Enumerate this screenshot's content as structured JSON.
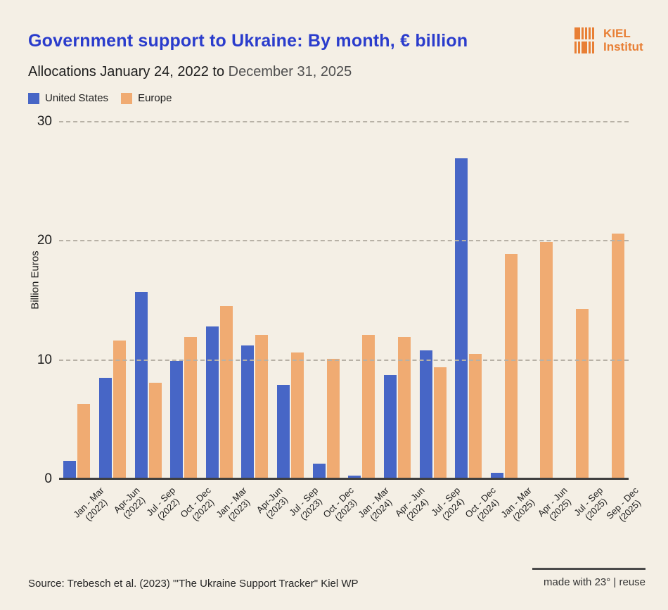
{
  "header": {
    "title": "Government support to Ukraine: By month, € billion",
    "subtitle_main": "Allocations January 24, 2022 to ",
    "subtitle_end": "December 31, 2025"
  },
  "logo": {
    "line1": "KIEL",
    "line2": "Institut",
    "color": "#e87f35"
  },
  "legend": {
    "items": [
      {
        "label": "United States",
        "color": "#4766c6"
      },
      {
        "label": "Europe",
        "color": "#f0ab72"
      }
    ]
  },
  "chart_data": {
    "type": "bar",
    "title": "Government support to Ukraine: By month, € billion",
    "subtitle": "Allocations January 24, 2022 to December 31, 2025",
    "ylabel": "Billion Euros",
    "xlabel": "",
    "ylim": [
      0,
      30
    ],
    "yticks": [
      0,
      10,
      20,
      30
    ],
    "grid": "horizontal dashed at 10, 20, 30",
    "legend_position": "top-left",
    "categories": [
      "Jan - Mar (2022)",
      "Apr-Jun (2022)",
      "Jul - Sep (2022)",
      "Oct - Dec (2022)",
      "Jan - Mar (2023)",
      "Apr-Jun (2023)",
      "Jul - Sep (2023)",
      "Oct - Dec (2023)",
      "Jan - Mar (2024)",
      "Apr - Jun (2024)",
      "Jul - Sep (2024)",
      "Oct - Dec (2024)",
      "Jan - Mar (2025)",
      "Apr - Jun (2025)",
      "Jul - Sep (2025)",
      "Sep - Dec (2025)"
    ],
    "series": [
      {
        "name": "United States",
        "color": "#4766c6",
        "values": [
          1.4,
          8.4,
          15.6,
          9.8,
          12.7,
          11.1,
          7.8,
          1.2,
          0.2,
          8.6,
          10.7,
          26.8,
          0.4,
          0,
          0,
          0
        ]
      },
      {
        "name": "Europe",
        "color": "#f0ab72",
        "values": [
          6.2,
          11.5,
          8.0,
          11.8,
          14.4,
          12.0,
          10.5,
          10.0,
          12.0,
          11.8,
          9.3,
          10.4,
          18.8,
          19.8,
          14.2,
          20.5
        ]
      }
    ]
  },
  "footer": {
    "source": "Source: Trebesch et al. (2023) \"'The Ukraine Support Tracker\" Kiel WP",
    "made_with": "made with 23° | reuse"
  },
  "colors": {
    "background": "#f4efe5",
    "title": "#2a3ccc",
    "axis": "#3f3f3f",
    "grid": "#b7b1a6",
    "kiel_orange": "#e87f35"
  }
}
